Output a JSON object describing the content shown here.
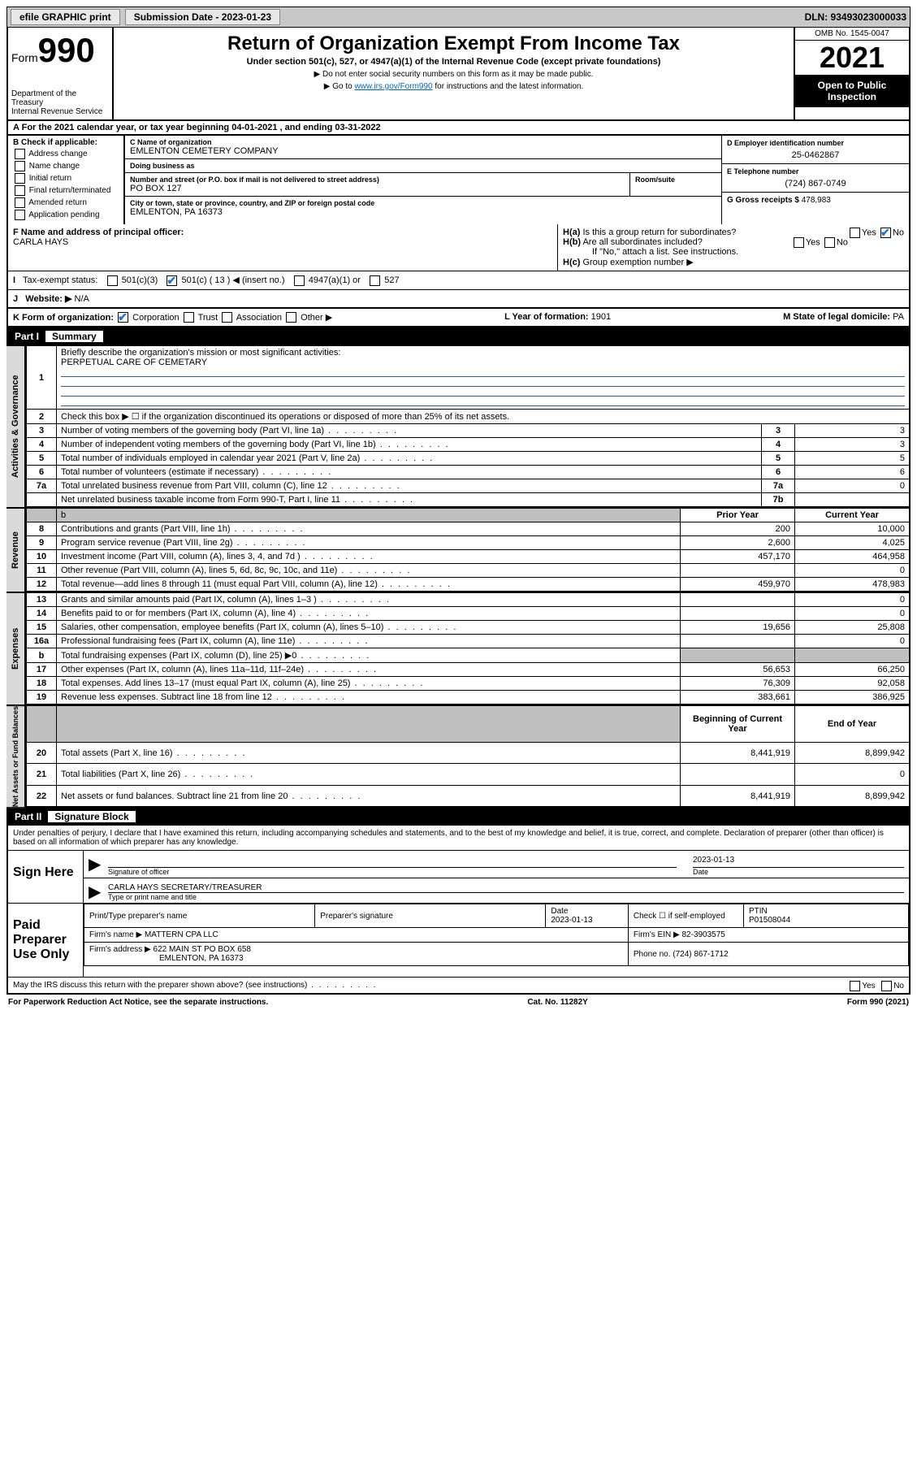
{
  "colors": {
    "bg": "#ffffff",
    "text": "#000000",
    "grey_bar": "#c8c8c8",
    "cell_grey": "#c0c0c0",
    "sidetab": "#dadada",
    "link": "#0066cc",
    "blue_line": "#2a5caa",
    "check_blue": "#1976d2"
  },
  "topbar": {
    "efile": "efile GRAPHIC print",
    "sub_label": "Submission Date - ",
    "sub_date": "2023-01-23",
    "dln": "DLN: 93493023000033"
  },
  "hdr": {
    "form_word": "Form",
    "form_num": "990",
    "dept": "Department of the Treasury",
    "irs": "Internal Revenue Service",
    "title": "Return of Organization Exempt From Income Tax",
    "sub": "Under section 501(c), 527, or 4947(a)(1) of the Internal Revenue Code (except private foundations)",
    "note1": "Do not enter social security numbers on this form as it may be made public.",
    "note2_pre": "Go to ",
    "note2_link": "www.irs.gov/Form990",
    "note2_post": " for instructions and the latest information.",
    "omb": "OMB No. 1545-0047",
    "year": "2021",
    "open": "Open to Public Inspection"
  },
  "period": {
    "text_a": "For the 2021 calendar year, or tax year beginning ",
    "beg": "04-01-2021",
    "text_b": " , and ending ",
    "end": "03-31-2022"
  },
  "boxB": {
    "hdr": "B Check if applicable:",
    "opts": [
      "Address change",
      "Name change",
      "Initial return",
      "Final return/terminated",
      "Amended return",
      "Application pending"
    ]
  },
  "boxC": {
    "lbl_name": "C Name of organization",
    "name": "EMLENTON CEMETERY COMPANY",
    "lbl_dba": "Doing business as",
    "dba": "",
    "lbl_addr": "Number and street (or P.O. box if mail is not delivered to street address)",
    "addr": "PO BOX 127",
    "lbl_room": "Room/suite",
    "room": "",
    "lbl_city": "City or town, state or province, country, and ZIP or foreign postal code",
    "city": "EMLENTON, PA  16373"
  },
  "boxD": {
    "lbl": "D Employer identification number",
    "val": "25-0462867"
  },
  "boxE": {
    "lbl": "E Telephone number",
    "val": "(724) 867-0749"
  },
  "boxG": {
    "lbl": "G Gross receipts $ ",
    "val": "478,983"
  },
  "boxF": {
    "lbl": "F Name and address of principal officer:",
    "val": "CARLA HAYS"
  },
  "boxH": {
    "a": "Is this a group return for subordinates?",
    "b": "Are all subordinates included?",
    "note": "If \"No,\" attach a list. See instructions.",
    "c": "Group exemption number ▶",
    "yes": "Yes",
    "no": "No"
  },
  "boxI": {
    "lbl": "Tax-exempt status:",
    "a": "501(c)(3)",
    "b": "501(c) ( 13 ) ◀ (insert no.)",
    "c": "4947(a)(1) or",
    "d": "527"
  },
  "boxJ": {
    "lbl": "Website: ▶",
    "val": "N/A"
  },
  "boxK": {
    "lbl": "K Form of organization:",
    "a": "Corporation",
    "b": "Trust",
    "c": "Association",
    "d": "Other ▶"
  },
  "boxL": {
    "lbl": "L Year of formation: ",
    "val": "1901"
  },
  "boxM": {
    "lbl": "M State of legal domicile: ",
    "val": "PA"
  },
  "part1": {
    "hdr_num": "Part I",
    "hdr_txt": "Summary",
    "side_gov": "Activities & Governance",
    "side_rev": "Revenue",
    "side_exp": "Expenses",
    "side_net": "Net Assets or Fund Balances",
    "l1_lbl": "Briefly describe the organization's mission or most significant activities:",
    "l1_val": "PERPETUAL CARE OF CEMETARY",
    "l2": "Check this box ▶ ☐ if the organization discontinued its operations or disposed of more than 25% of its net assets.",
    "col_prior": "Prior Year",
    "col_curr": "Current Year",
    "col_boy": "Beginning of Current Year",
    "col_eoy": "End of Year"
  },
  "gov_lines": [
    {
      "n": "3",
      "d": "Number of voting members of the governing body (Part VI, line 1a)",
      "r": "3",
      "v": "3"
    },
    {
      "n": "4",
      "d": "Number of independent voting members of the governing body (Part VI, line 1b)",
      "r": "4",
      "v": "3"
    },
    {
      "n": "5",
      "d": "Total number of individuals employed in calendar year 2021 (Part V, line 2a)",
      "r": "5",
      "v": "5"
    },
    {
      "n": "6",
      "d": "Total number of volunteers (estimate if necessary)",
      "r": "6",
      "v": "6"
    },
    {
      "n": "7a",
      "d": "Total unrelated business revenue from Part VIII, column (C), line 12",
      "r": "7a",
      "v": "0"
    },
    {
      "n": "",
      "d": "Net unrelated business taxable income from Form 990-T, Part I, line 11",
      "r": "7b",
      "v": ""
    }
  ],
  "rev_lines": [
    {
      "n": "8",
      "d": "Contributions and grants (Part VIII, line 1h)",
      "p": "200",
      "c": "10,000"
    },
    {
      "n": "9",
      "d": "Program service revenue (Part VIII, line 2g)",
      "p": "2,600",
      "c": "4,025"
    },
    {
      "n": "10",
      "d": "Investment income (Part VIII, column (A), lines 3, 4, and 7d )",
      "p": "457,170",
      "c": "464,958"
    },
    {
      "n": "11",
      "d": "Other revenue (Part VIII, column (A), lines 5, 6d, 8c, 9c, 10c, and 11e)",
      "p": "",
      "c": "0"
    },
    {
      "n": "12",
      "d": "Total revenue—add lines 8 through 11 (must equal Part VIII, column (A), line 12)",
      "p": "459,970",
      "c": "478,983"
    }
  ],
  "exp_lines": [
    {
      "n": "13",
      "d": "Grants and similar amounts paid (Part IX, column (A), lines 1–3 )",
      "p": "",
      "c": "0"
    },
    {
      "n": "14",
      "d": "Benefits paid to or for members (Part IX, column (A), line 4)",
      "p": "",
      "c": "0"
    },
    {
      "n": "15",
      "d": "Salaries, other compensation, employee benefits (Part IX, column (A), lines 5–10)",
      "p": "19,656",
      "c": "25,808"
    },
    {
      "n": "16a",
      "d": "Professional fundraising fees (Part IX, column (A), line 11e)",
      "p": "",
      "c": "0"
    },
    {
      "n": "b",
      "d": "Total fundraising expenses (Part IX, column (D), line 25) ▶0",
      "p": "GREY",
      "c": "GREY"
    },
    {
      "n": "17",
      "d": "Other expenses (Part IX, column (A), lines 11a–11d, 11f–24e)",
      "p": "56,653",
      "c": "66,250"
    },
    {
      "n": "18",
      "d": "Total expenses. Add lines 13–17 (must equal Part IX, column (A), line 25)",
      "p": "76,309",
      "c": "92,058"
    },
    {
      "n": "19",
      "d": "Revenue less expenses. Subtract line 18 from line 12",
      "p": "383,661",
      "c": "386,925"
    }
  ],
  "net_lines": [
    {
      "n": "20",
      "d": "Total assets (Part X, line 16)",
      "p": "8,441,919",
      "c": "8,899,942"
    },
    {
      "n": "21",
      "d": "Total liabilities (Part X, line 26)",
      "p": "",
      "c": "0"
    },
    {
      "n": "22",
      "d": "Net assets or fund balances. Subtract line 21 from line 20",
      "p": "8,441,919",
      "c": "8,899,942"
    }
  ],
  "part2": {
    "hdr_num": "Part II",
    "hdr_txt": "Signature Block",
    "jurat": "Under penalties of perjury, I declare that I have examined this return, including accompanying schedules and statements, and to the best of my knowledge and belief, it is true, correct, and complete. Declaration of preparer (other than officer) is based on all information of which preparer has any knowledge.",
    "sign_here": "Sign Here",
    "sig_officer_lbl": "Signature of officer",
    "date_lbl": "Date",
    "sig_date": "2023-01-13",
    "name_title_lbl": "Type or print name and title",
    "name_title": "CARLA HAYS  SECRETARY/TREASURER",
    "paid_hdr": "Paid Preparer Use Only",
    "prep_name_lbl": "Print/Type preparer's name",
    "prep_sig_lbl": "Preparer's signature",
    "prep_date_lbl": "Date",
    "prep_date": "2023-01-13",
    "prep_self_lbl": "Check ☐ if self-employed",
    "ptin_lbl": "PTIN",
    "ptin": "P01508044",
    "firm_name_lbl": "Firm's name   ▶ ",
    "firm_name": "MATTERN CPA LLC",
    "firm_ein_lbl": "Firm's EIN ▶ ",
    "firm_ein": "82-3903575",
    "firm_addr_lbl": "Firm's address ▶ ",
    "firm_addr": "622 MAIN ST PO BOX 658",
    "firm_city": "EMLENTON, PA  16373",
    "firm_phone_lbl": "Phone no. ",
    "firm_phone": "(724) 867-1712",
    "discuss": "May the IRS discuss this return with the preparer shown above? (see instructions)"
  },
  "footer": {
    "pra": "For Paperwork Reduction Act Notice, see the separate instructions.",
    "cat": "Cat. No. 11282Y",
    "form": "Form 990 (2021)"
  }
}
